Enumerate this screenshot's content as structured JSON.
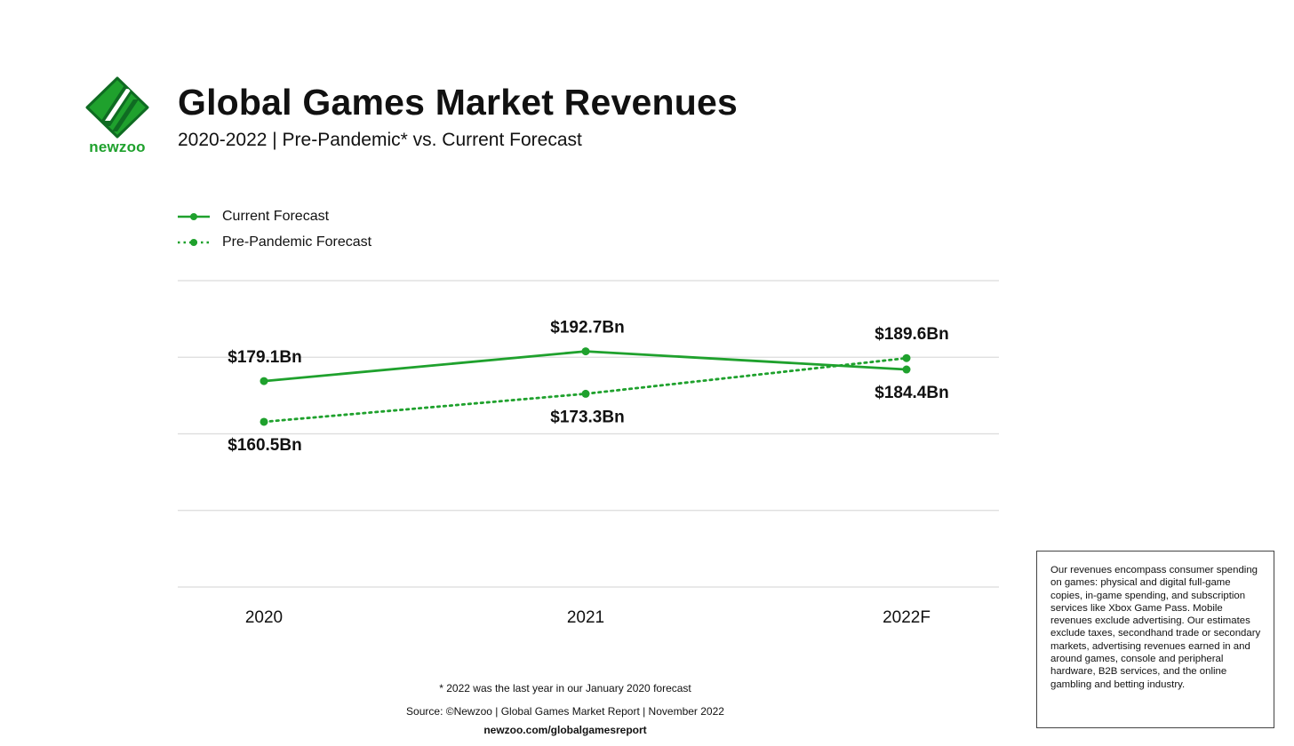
{
  "brand": {
    "name": "newzoo",
    "color": "#1fa12d",
    "dark_color": "#0f6b22"
  },
  "header": {
    "title": "Global Games Market Revenues",
    "subtitle": "2020-2022 | Pre-Pandemic* vs. Current Forecast"
  },
  "chart_data": {
    "type": "line",
    "categories": [
      "2020",
      "2021",
      "2022F"
    ],
    "series": [
      {
        "name": "Current Forecast",
        "values": [
          179.1,
          192.7,
          184.4
        ],
        "labels": [
          "$179.1Bn",
          "$192.7Bn",
          "$184.4Bn"
        ],
        "style": "solid",
        "color": "#1fa12d"
      },
      {
        "name": "Pre-Pandemic Forecast",
        "values": [
          160.5,
          173.3,
          189.6
        ],
        "labels": [
          "$160.5Bn",
          "$173.3Bn",
          "$189.6Bn"
        ],
        "style": "dotted",
        "color": "#1fa12d"
      }
    ],
    "ylim": [
      85,
      225
    ],
    "grid": true,
    "legend_position": "top-left",
    "xlabel": "",
    "ylabel": ""
  },
  "footer": {
    "footnote": "* 2022 was the last year in our January 2020 forecast",
    "source": "Source: ©Newzoo | Global Games Market Report | November 2022",
    "website": "newzoo.com/globalgamesreport"
  },
  "note": "Our revenues encompass consumer spending on games: physical and digital full-game copies, in-game spending, and subscription services like Xbox Game Pass. Mobile revenues exclude advertising. Our estimates exclude taxes, secondhand trade or secondary markets, advertising revenues earned in and around games, console and peripheral hardware, B2B services, and the online gambling and betting industry."
}
